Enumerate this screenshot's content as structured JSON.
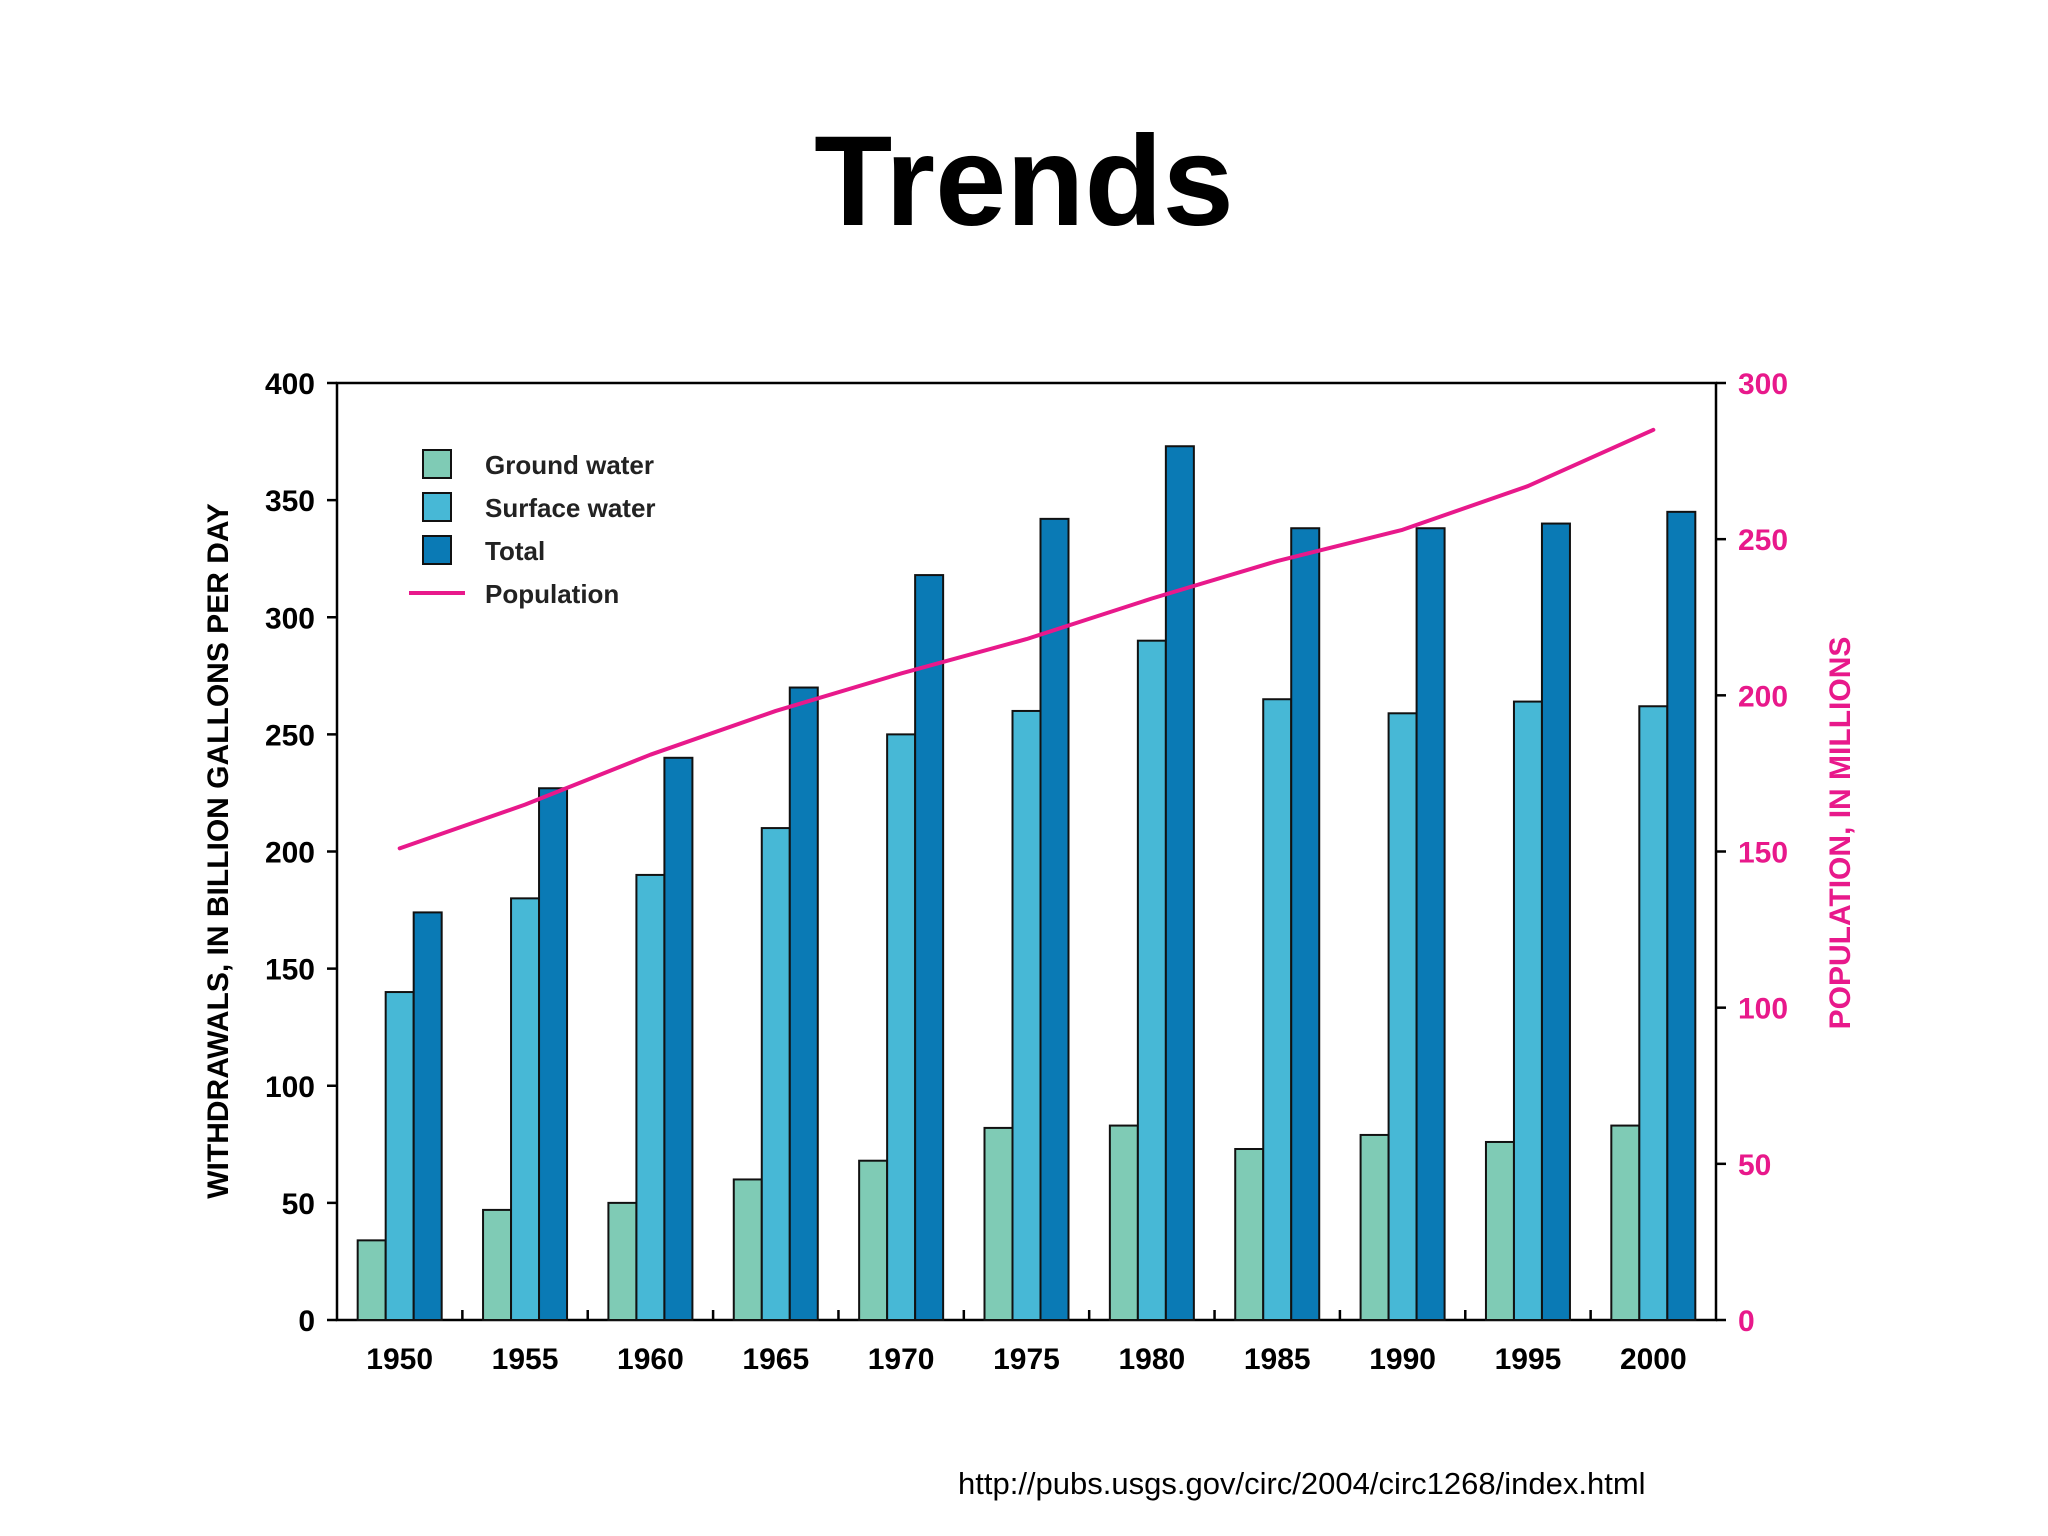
{
  "slide": {
    "title": "Trends",
    "source_url": "http://pubs.usgs.gov/circ/2004/circ1268/index.html"
  },
  "colors": {
    "ground_water": "#7fcbb5",
    "surface_water": "#47b8d6",
    "total": "#0a7ab5",
    "population": "#e8198b",
    "axis": "#000000"
  },
  "chart_data": {
    "type": "bar",
    "title": "",
    "categories": [
      "1950",
      "1955",
      "1960",
      "1965",
      "1970",
      "1975",
      "1980",
      "1985",
      "1990",
      "1995",
      "2000"
    ],
    "series": [
      {
        "name": "Ground water",
        "values": [
          34,
          47,
          50,
          60,
          68,
          82,
          83,
          73,
          79,
          76,
          83
        ]
      },
      {
        "name": "Surface water",
        "values": [
          140,
          180,
          190,
          210,
          250,
          260,
          290,
          265,
          259,
          264,
          262
        ]
      },
      {
        "name": "Total",
        "values": [
          174,
          227,
          240,
          270,
          318,
          342,
          373,
          338,
          338,
          340,
          345
        ]
      }
    ],
    "line_series": {
      "name": "Population",
      "axis": "right",
      "values": [
        151,
        165,
        181,
        195,
        207,
        218,
        231,
        243,
        253,
        267,
        285
      ]
    },
    "ylabel": "WITHDRAWALS, IN BILLION GALLONS PER DAY",
    "y2label": "POPULATION, IN MILLIONS",
    "ylim": [
      0,
      400
    ],
    "y2lim": [
      0,
      300
    ],
    "yticks": [
      0,
      50,
      100,
      150,
      200,
      250,
      300,
      350,
      400
    ],
    "y2ticks": [
      0,
      50,
      100,
      150,
      200,
      250,
      300
    ],
    "legend": {
      "placement": "top-left",
      "entries": [
        "Ground water",
        "Surface water",
        "Total",
        "Population"
      ]
    },
    "grid": false
  }
}
